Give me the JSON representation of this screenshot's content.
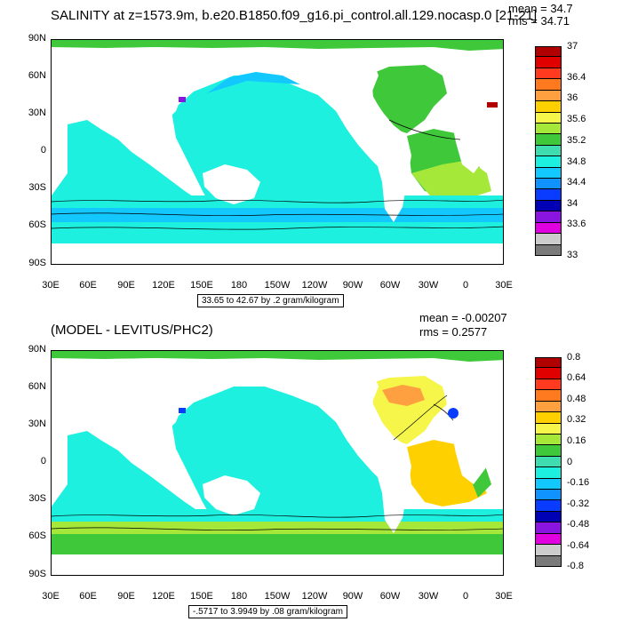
{
  "chart_data": [
    {
      "type": "heatmap",
      "title": "SALINITY at z=1573.9m, b.e20.B1850.f09_g16.pi_control.all.129.nocasp.0",
      "title_suffix": "[21-21]",
      "mean_label": "mean = 34.7",
      "rms_label": "rms = 34.71",
      "ytick_labels": [
        "90N",
        "60N",
        "30N",
        "0",
        "30S",
        "60S",
        "90S"
      ],
      "xtick_labels": [
        "30E",
        "60E",
        "90E",
        "120E",
        "150E",
        "180",
        "150W",
        "120W",
        "90W",
        "60W",
        "30W",
        "0",
        "30E"
      ],
      "range_note": "33.65 to 42.67 by .2 gram/kilogram",
      "colorbar_labels": [
        "37",
        "36.4",
        "36",
        "35.6",
        "35.2",
        "34.8",
        "34.4",
        "34",
        "33.6",
        "33"
      ],
      "colorbar_colors": [
        "#b00000",
        "#e00000",
        "#ff3a1e",
        "#ff7a1e",
        "#ffa040",
        "#ffd000",
        "#f5f54a",
        "#a6e83a",
        "#3ec83a",
        "#3fdcb0",
        "#1ef0e0",
        "#12c8ff",
        "#1092ff",
        "#0a3cff",
        "#0000b4",
        "#8a14e0",
        "#e000e0",
        "#cccccc",
        "#7a7a7a"
      ]
    },
    {
      "type": "heatmap",
      "title": "(MODEL - LEVITUS/PHC2)",
      "mean_label": "mean = -0.00207",
      "rms_label": "rms = 0.2577",
      "ytick_labels": [
        "90N",
        "60N",
        "30N",
        "0",
        "30S",
        "60S",
        "90S"
      ],
      "xtick_labels": [
        "30E",
        "60E",
        "90E",
        "120E",
        "150E",
        "180",
        "150W",
        "120W",
        "90W",
        "60W",
        "30W",
        "0",
        "30E"
      ],
      "range_note": "-.5717 to 3.9949 by .08 gram/kilogram",
      "colorbar_labels": [
        "0.8",
        "0.64",
        "0.48",
        "0.32",
        "0.16",
        "0",
        "-0.16",
        "-0.32",
        "-0.48",
        "-0.64",
        "-0.8"
      ],
      "colorbar_colors": [
        "#b00000",
        "#e00000",
        "#ff3a1e",
        "#ff7a1e",
        "#ffa040",
        "#ffd000",
        "#f5f54a",
        "#a6e83a",
        "#3ec83a",
        "#3fdcb0",
        "#1ef0e0",
        "#12c8ff",
        "#1092ff",
        "#0a3cff",
        "#0000b4",
        "#8a14e0",
        "#e000e0",
        "#cccccc",
        "#7a7a7a"
      ]
    }
  ]
}
